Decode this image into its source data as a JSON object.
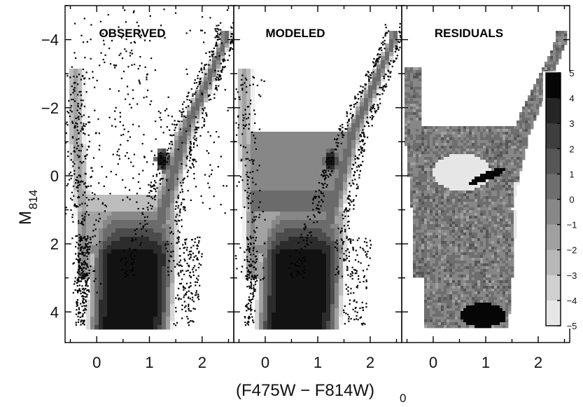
{
  "figure": {
    "xlabel_main": "(F475W − F814W)",
    "xlabel_sub": "0",
    "ylabel_main": "M",
    "ylabel_sub": "814"
  },
  "chart_data": {
    "type": "heatmap",
    "description_free": true,
    "panels": [
      {
        "title": "OBSERVED",
        "kind": "observed"
      },
      {
        "title": "MODELED",
        "kind": "modeled"
      },
      {
        "title": "RESIDUALS",
        "kind": "residuals"
      }
    ],
    "x_ticks": [
      0,
      1,
      2
    ],
    "y_ticks": [
      -4,
      -2,
      0,
      2,
      4
    ],
    "xlim": [
      -0.6,
      2.6
    ],
    "ylim": [
      4.9,
      -5.0
    ],
    "y_inverted": true,
    "colorbar": {
      "ticks": [
        5,
        4,
        3,
        2,
        1,
        0,
        -1,
        -2,
        -3,
        -4,
        -5
      ],
      "range": [
        -5,
        5
      ],
      "colors": [
        "#060606",
        "#262626",
        "#3e3e3e",
        "#565656",
        "#6e6e6e",
        "#878787",
        "#a0a0a0",
        "#b8b8b8",
        "#d0d0d0",
        "#e6e6e6"
      ]
    },
    "density_levels": [
      "#f0f0f0",
      "#d8d8d8",
      "#bdbdbd",
      "#a2a2a2",
      "#878787",
      "#6b6b6b",
      "#4c4c4c",
      "#2c2c2c",
      "#121212"
    ]
  }
}
